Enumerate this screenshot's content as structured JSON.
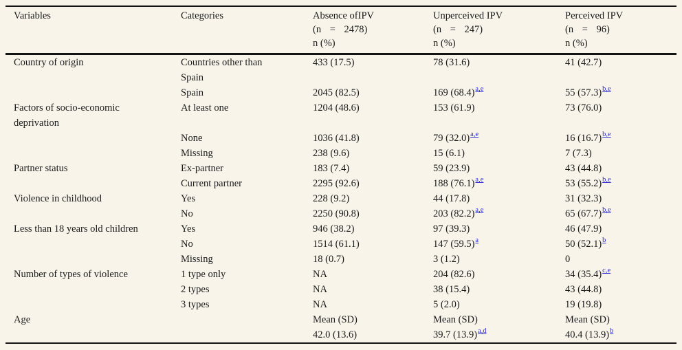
{
  "colors": {
    "background": "#f8f4ea",
    "text": "#1a1a1a",
    "rule": "#141414",
    "footnote_link_blue": "#2a2acd"
  },
  "table": {
    "columns": [
      {
        "label": "Variables"
      },
      {
        "label": "Categories"
      },
      {
        "label": "Absence ofIPV",
        "n_line": "(n = 2478)",
        "stat_line": "n (%)"
      },
      {
        "label": "Unperceived IPV",
        "n_line": "(n = 247)",
        "stat_line": "n (%)"
      },
      {
        "label": "Perceived IPV",
        "n_line": "(n = 96)",
        "stat_line": "n (%)"
      }
    ],
    "rows": [
      {
        "variable": "Country of origin",
        "category": "Countries other than Spain",
        "cells": [
          {
            "text": "433 (17.5)"
          },
          {
            "text": "78 (31.6)"
          },
          {
            "text": "41 (42.7)"
          }
        ]
      },
      {
        "variable": "",
        "category": "Spain",
        "cells": [
          {
            "text": "2045 (82.5)"
          },
          {
            "text": "169 (68.4)",
            "sup": "a,e"
          },
          {
            "text": "55 (57.3)",
            "sup": "b,e"
          }
        ]
      },
      {
        "variable": "Factors of socio-economic deprivation",
        "category": "At least one",
        "cells": [
          {
            "text": "1204 (48.6)"
          },
          {
            "text": "153 (61.9)"
          },
          {
            "text": "73 (76.0)"
          }
        ]
      },
      {
        "variable": "",
        "category": "None",
        "cells": [
          {
            "text": "1036 (41.8)"
          },
          {
            "text": "79 (32.0)",
            "sup": "a,e"
          },
          {
            "text": "16 (16.7)",
            "sup": "b,e"
          }
        ]
      },
      {
        "variable": "",
        "category": "Missing",
        "cells": [
          {
            "text": "238 (9.6)"
          },
          {
            "text": "15 (6.1)"
          },
          {
            "text": "7 (7.3)"
          }
        ]
      },
      {
        "variable": "Partner status",
        "category": "Ex-partner",
        "cells": [
          {
            "text": "183 (7.4)"
          },
          {
            "text": "59 (23.9)"
          },
          {
            "text": "43 (44.8)"
          }
        ]
      },
      {
        "variable": "",
        "category": "Current partner",
        "cells": [
          {
            "text": "2295 (92.6)"
          },
          {
            "text": "188 (76.1)",
            "sup": "a,e"
          },
          {
            "text": "53 (55.2)",
            "sup": "b,e"
          }
        ]
      },
      {
        "variable": "Violence in childhood",
        "category": "Yes",
        "cells": [
          {
            "text": "228 (9.2)"
          },
          {
            "text": "44 (17.8)"
          },
          {
            "text": "31 (32.3)"
          }
        ]
      },
      {
        "variable": "",
        "category": "No",
        "cells": [
          {
            "text": "2250 (90.8)"
          },
          {
            "text": "203 (82.2)",
            "sup": "a,e"
          },
          {
            "text": "65 (67.7)",
            "sup": "b,e"
          }
        ]
      },
      {
        "variable": "Less than 18 years old children",
        "category": "Yes",
        "cells": [
          {
            "text": "946 (38.2)"
          },
          {
            "text": "97 (39.3)"
          },
          {
            "text": "46 (47.9)"
          }
        ]
      },
      {
        "variable": "",
        "category": "No",
        "cells": [
          {
            "text": "1514 (61.1)"
          },
          {
            "text": "147 (59.5)",
            "sup": "a"
          },
          {
            "text": "50 (52.1)",
            "sup": "b"
          }
        ]
      },
      {
        "variable": "",
        "category": "Missing",
        "cells": [
          {
            "text": "18 (0.7)"
          },
          {
            "text": "3 (1.2)"
          },
          {
            "text": "0"
          }
        ]
      },
      {
        "variable": "Number of types of violence",
        "category": "1 type only",
        "cells": [
          {
            "text": "NA"
          },
          {
            "text": "204 (82.6)"
          },
          {
            "text": "34 (35.4)",
            "sup": "c,e"
          }
        ]
      },
      {
        "variable": "",
        "category": "2 types",
        "cells": [
          {
            "text": "NA"
          },
          {
            "text": "38 (15.4)"
          },
          {
            "text": "43 (44.8)"
          }
        ]
      },
      {
        "variable": "",
        "category": "3 types",
        "cells": [
          {
            "text": "NA"
          },
          {
            "text": "5 (2.0)"
          },
          {
            "text": "19 (19.8)"
          }
        ]
      },
      {
        "variable": "Age",
        "category": "",
        "cells": [
          {
            "text": "Mean (SD)"
          },
          {
            "text": "Mean (SD)"
          },
          {
            "text": "Mean (SD)"
          }
        ]
      },
      {
        "variable": "",
        "category": "",
        "cells": [
          {
            "text": "42.0 (13.6)"
          },
          {
            "text": "39.7 (13.9)",
            "sup": "a,d"
          },
          {
            "text": "40.4 (13.9)",
            "sup": "b"
          }
        ]
      }
    ]
  }
}
